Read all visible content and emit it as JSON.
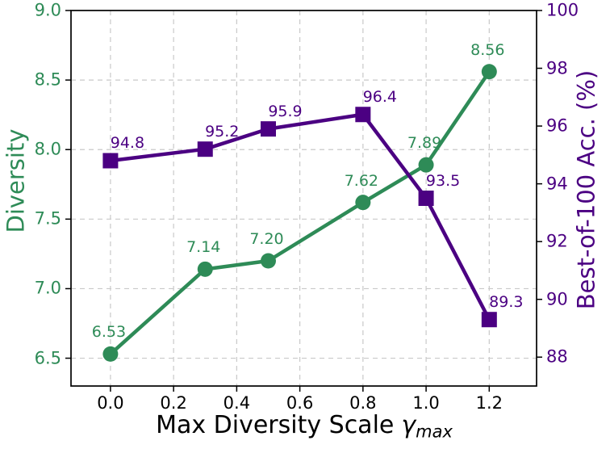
{
  "figure": {
    "background": "#ffffff"
  },
  "chart_data": {
    "type": "line",
    "title": "",
    "x": [
      0.0,
      0.3,
      0.5,
      0.8,
      1.0,
      1.2
    ],
    "series": [
      {
        "name": "Diversity",
        "axis": "left",
        "color": "#2E8B57",
        "marker": "circle",
        "values": [
          6.53,
          7.14,
          7.2,
          7.62,
          7.89,
          8.56
        ],
        "point_labels": [
          "6.53",
          "7.14",
          "7.20",
          "7.62",
          "7.89",
          "8.56"
        ]
      },
      {
        "name": "Best-of-100 Acc. (%)",
        "axis": "right",
        "color": "#4B0082",
        "marker": "square",
        "values": [
          94.8,
          95.2,
          95.9,
          96.4,
          93.5,
          89.3
        ],
        "point_labels": [
          "94.8",
          "95.2",
          "95.9",
          "96.4",
          "93.5",
          "89.3"
        ]
      }
    ],
    "xlabel": "Max Diversity Scale γ_max",
    "xlabel_parts": {
      "text": "Max Diversity Scale",
      "symbol": "γ",
      "subscript": "max"
    },
    "x_axis": {
      "ticks": [
        0.0,
        0.2,
        0.4,
        0.6,
        0.8,
        1.0,
        1.2
      ],
      "tick_labels": [
        "0.0",
        "0.2",
        "0.4",
        "0.6",
        "0.8",
        "1.0",
        "1.2"
      ],
      "lim": [
        -0.125,
        1.35
      ],
      "tick_label_color": "#000000"
    },
    "left_axis": {
      "label": "Diversity",
      "ticks": [
        6.5,
        7.0,
        7.5,
        8.0,
        8.5,
        9.0
      ],
      "tick_labels": [
        "6.5",
        "7.0",
        "7.5",
        "8.0",
        "8.5",
        "9.0"
      ],
      "lim": [
        6.3,
        9.0
      ],
      "color": "#2E8B57"
    },
    "right_axis": {
      "label": "Best-of-100 Acc. (%)",
      "ticks": [
        88,
        90,
        92,
        94,
        96,
        98,
        100
      ],
      "tick_labels": [
        "88",
        "90",
        "92",
        "94",
        "96",
        "98",
        "100"
      ],
      "lim": [
        87.0,
        100.0
      ],
      "color": "#4B0082"
    },
    "grid": {
      "show": true,
      "style": "dashed",
      "color": "#c9c9c9"
    },
    "legend": "none",
    "spine_color": "#000000"
  }
}
